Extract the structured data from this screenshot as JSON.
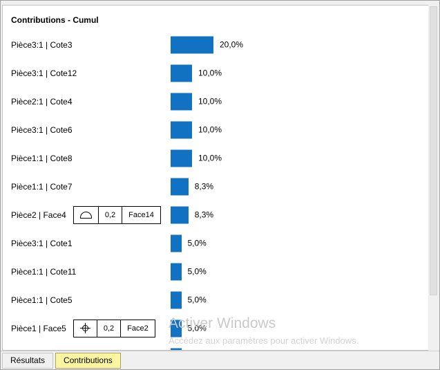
{
  "panel": {
    "title": "Contributions - Cumul"
  },
  "chart_data": {
    "type": "bar",
    "orientation": "horizontal",
    "title": "Contributions - Cumul",
    "unit": "percent",
    "bar_color": "#1171c3",
    "xlim": [
      0,
      100
    ],
    "rows": [
      {
        "label": "Pièce3:1 | Cote3",
        "value": 20.0,
        "value_label": "20,0%"
      },
      {
        "label": "Pièce3:1 | Cote12",
        "value": 10.0,
        "value_label": "10,0%"
      },
      {
        "label": "Pièce2:1 | Cote4",
        "value": 10.0,
        "value_label": "10,0%"
      },
      {
        "label": "Pièce3:1 | Cote6",
        "value": 10.0,
        "value_label": "10,0%"
      },
      {
        "label": "Pièce1:1 | Cote8",
        "value": 10.0,
        "value_label": "10,0%"
      },
      {
        "label": "Pièce1:1 | Cote7",
        "value": 8.3,
        "value_label": "8,3%"
      },
      {
        "label": "Pièce2 | Face4",
        "value": 8.3,
        "value_label": "8,3%",
        "fcf": {
          "symbol": "profile-of-surface",
          "icon": "profile-of-surface-icon",
          "tolerance": "0,2",
          "datum": "Face14"
        }
      },
      {
        "label": "Pièce3:1 | Cote1",
        "value": 5.0,
        "value_label": "5,0%"
      },
      {
        "label": "Pièce1:1 | Cote11",
        "value": 5.0,
        "value_label": "5,0%"
      },
      {
        "label": "Pièce1:1 | Cote5",
        "value": 5.0,
        "value_label": "5,0%"
      },
      {
        "label": "Pièce1 | Face5",
        "value": 5.0,
        "value_label": "5,0%",
        "fcf": {
          "symbol": "position",
          "icon": "position-icon",
          "tolerance": "0,2",
          "datum": "Face2"
        }
      },
      {
        "label": "",
        "value": 5.0,
        "value_label": "",
        "partial": true
      }
    ]
  },
  "tabs": [
    {
      "label": "Résultats",
      "active": false
    },
    {
      "label": "Contributions",
      "active": true
    }
  ],
  "watermark": {
    "line1": "Activer Windows",
    "line2": "Accédez aux paramètres pour activer Windows."
  }
}
